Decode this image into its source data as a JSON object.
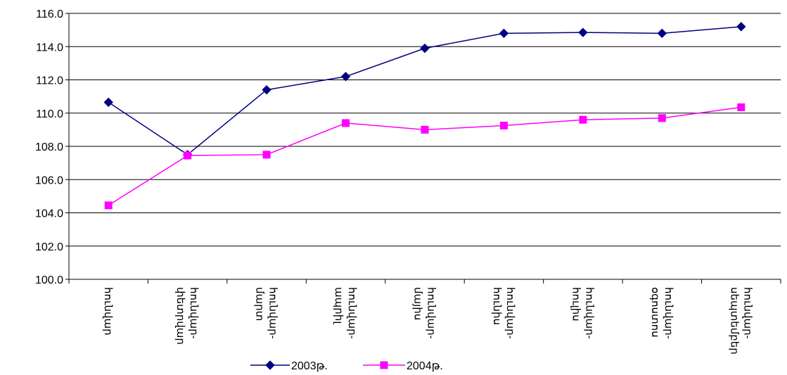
{
  "chart_data": {
    "type": "line",
    "title": "",
    "xlabel": "",
    "ylabel": "",
    "ylim": [
      100.0,
      116.0
    ],
    "yticks": [
      "100.0",
      "102.0",
      "104.0",
      "106.0",
      "108.0",
      "110.0",
      "112.0",
      "114.0",
      "116.0"
    ],
    "grid": true,
    "legend_position": "bottom",
    "categories": [
      [
        "հունվար"
      ],
      [
        "հունվար-",
        "փետրվար"
      ],
      [
        "հունվար-",
        "մարտ"
      ],
      [
        "հունվար-",
        "ապրիլ"
      ],
      [
        "հունվար-",
        "մայիս"
      ],
      [
        "հունվար-",
        "հունիս"
      ],
      [
        "հունվար-",
        "հուլիս"
      ],
      [
        "հունվար-",
        "օգոստոս"
      ],
      [
        "հունվար-",
        "սեպտեմբեր"
      ]
    ],
    "series": [
      {
        "name": "2003թ.",
        "color": "#000080",
        "marker": "diamond",
        "values": [
          110.65,
          107.5,
          111.4,
          112.2,
          113.9,
          114.8,
          114.85,
          114.8,
          115.2
        ]
      },
      {
        "name": "2004թ.",
        "color": "#ff00ff",
        "marker": "square",
        "values": [
          104.45,
          107.45,
          107.5,
          109.4,
          109.0,
          109.25,
          109.6,
          109.7,
          110.35
        ]
      }
    ]
  }
}
